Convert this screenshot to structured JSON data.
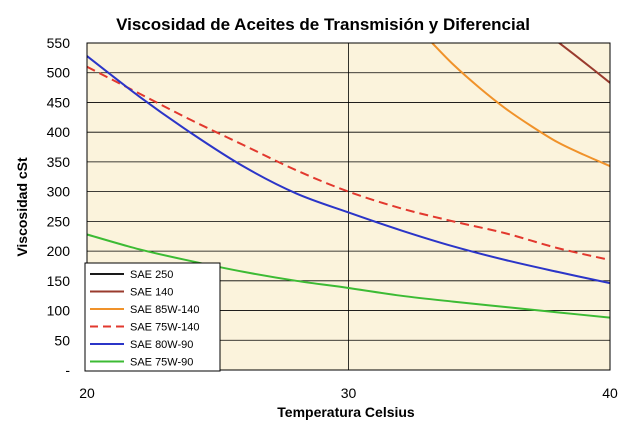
{
  "chart_data": {
    "type": "line",
    "title": "Viscosidad de Aceites de Transmisión y Diferencial",
    "xlabel": "Temperatura Celsius",
    "ylabel": "Viscosidad cSt",
    "xlim": [
      20,
      40
    ],
    "ylim": [
      0,
      550
    ],
    "x_ticks": [
      20,
      30,
      40
    ],
    "y_ticks": [
      0,
      50,
      100,
      150,
      200,
      250,
      300,
      350,
      400,
      450,
      500,
      550
    ],
    "y_tick_labels": [
      "-",
      "50",
      "100",
      "150",
      "200",
      "250",
      "300",
      "350",
      "400",
      "450",
      "500",
      "550"
    ],
    "legend_position": "bottom-left",
    "grid": true,
    "plot_background": "#fbf3dc",
    "series": [
      {
        "name": "SAE 250",
        "color": "#1a1a1a",
        "dash": false,
        "x": [],
        "y": []
      },
      {
        "name": "SAE 140",
        "color": "#9a3b2e",
        "dash": false,
        "x": [
          38.0,
          39.0,
          40.0
        ],
        "y": [
          552,
          518,
          483
        ]
      },
      {
        "name": "SAE 85W-140",
        "color": "#f0922a",
        "dash": false,
        "x": [
          33.2,
          34,
          35,
          36,
          37,
          38,
          39,
          40
        ],
        "y": [
          550,
          514,
          475,
          440,
          410,
          383,
          362,
          343
        ]
      },
      {
        "name": "SAE 75W-140",
        "color": "#e2382e",
        "dash": true,
        "x": [
          20,
          22,
          24,
          26,
          28,
          30,
          32,
          34,
          36,
          38,
          40
        ],
        "y": [
          510,
          465,
          420,
          378,
          336,
          300,
          272,
          250,
          230,
          205,
          185
        ]
      },
      {
        "name": "SAE 80W-90",
        "color": "#2b35c8",
        "dash": false,
        "x": [
          20,
          22,
          24,
          26,
          28,
          30,
          32,
          34,
          36,
          38,
          40
        ],
        "y": [
          528,
          460,
          398,
          342,
          297,
          265,
          235,
          208,
          185,
          165,
          146
        ]
      },
      {
        "name": "SAE 75W-90",
        "color": "#3cbb34",
        "dash": false,
        "x": [
          20,
          22,
          24,
          26,
          28,
          30,
          32,
          34,
          36,
          38,
          40
        ],
        "y": [
          228,
          203,
          183,
          165,
          150,
          138,
          125,
          115,
          106,
          97,
          88
        ]
      }
    ]
  }
}
